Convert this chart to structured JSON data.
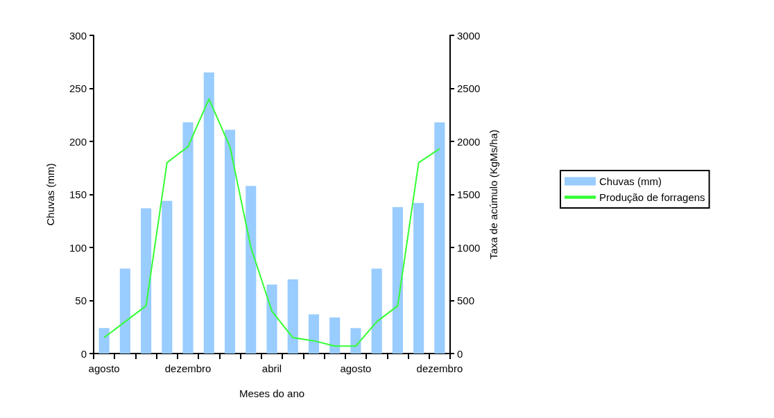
{
  "chart_data": {
    "type": "bar",
    "xlabel": "Meses do ano",
    "ylabel": "Chuvas (mm)",
    "y2label": "Taxa de acúmulo (KgMs/ha)",
    "categories": [
      "agosto",
      null,
      null,
      null,
      "dezembro",
      null,
      null,
      null,
      "abril",
      null,
      null,
      null,
      "agosto",
      null,
      null,
      null,
      "dezembro"
    ],
    "series": [
      {
        "name": "Chuvas (mm)",
        "color": "#99ccff",
        "values": [
          24,
          80,
          137,
          144,
          218,
          265,
          211,
          158,
          65,
          70,
          37,
          34,
          24,
          80,
          138,
          142,
          218
        ]
      },
      {
        "name": "Produção de forragens",
        "type": "line",
        "axis": "y2",
        "color": "#33ff33",
        "values": [
          150,
          300,
          450,
          1800,
          1950,
          2400,
          1950,
          1000,
          400,
          150,
          120,
          70,
          70,
          300,
          450,
          1800,
          1930
        ]
      }
    ],
    "ylim": [
      0,
      300
    ],
    "yticks": [
      0,
      50,
      100,
      150,
      200,
      250,
      300
    ],
    "y2lim": [
      0,
      3000
    ],
    "y2ticks": [
      0,
      500,
      1000,
      1500,
      2000,
      2500,
      3000
    ],
    "grid": false,
    "legend": "right",
    "marker": "none",
    "line_style": "solid"
  }
}
